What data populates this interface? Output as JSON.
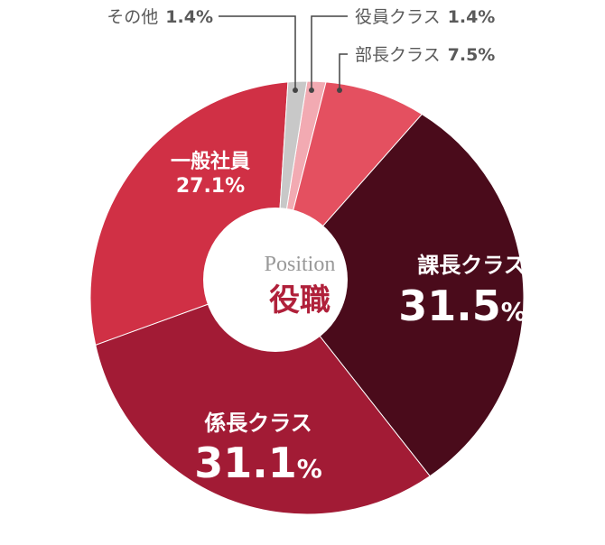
{
  "chart_data": {
    "type": "pie",
    "variant": "donut",
    "center_label_en": "Position",
    "center_label_ja": "役職",
    "slices": [
      {
        "label": "役員クラス",
        "value": 1.4,
        "display": "1.4%",
        "color": "#f2aab2"
      },
      {
        "label": "部長クラス",
        "value": 7.5,
        "display": "7.5%",
        "color": "#e45060"
      },
      {
        "label": "課長クラス",
        "value": 31.5,
        "display": "31.5",
        "unit": "%",
        "color": "#4a0b1b"
      },
      {
        "label": "係長クラス",
        "value": 31.1,
        "display": "31.1",
        "unit": "%",
        "color": "#a21b35"
      },
      {
        "label": "一般社員",
        "value": 27.1,
        "display": "27.1%",
        "color": "#d03045"
      },
      {
        "label": "その他",
        "value": 1.4,
        "display": "1.4%",
        "color": "#c8c8c8"
      }
    ]
  }
}
